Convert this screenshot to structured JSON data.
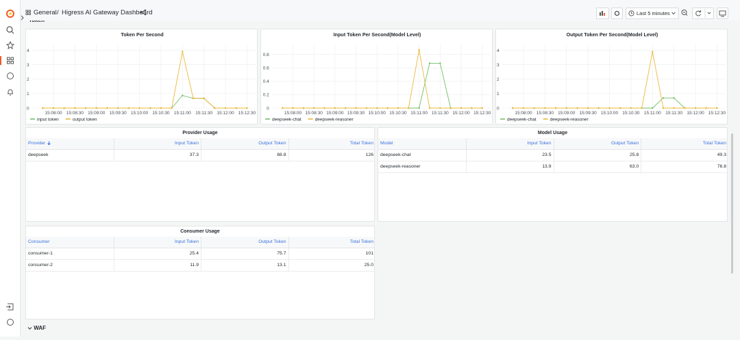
{
  "header": {
    "breadcrumb_root": "General",
    "breadcrumb_separator": "/",
    "dashboard_title": "Higress AI Gateway Dashboard",
    "time_range": "Last 5 minutes"
  },
  "rows": [
    "Token",
    "WAF"
  ],
  "chart_data": [
    {
      "type": "line",
      "title": "Token Per Second",
      "x": [
        "15:07:45",
        "15:08:00",
        "15:08:15",
        "15:08:30",
        "15:08:45",
        "15:09:00",
        "15:09:15",
        "15:09:30",
        "15:09:45",
        "15:10:00",
        "15:10:15",
        "15:10:30",
        "15:10:45",
        "15:11:00",
        "15:11:15",
        "15:11:30",
        "15:11:45",
        "15:12:00",
        "15:12:15",
        "15:12:30"
      ],
      "xlim": [
        "15:07:30",
        "15:12:42"
      ],
      "xticks": [
        "15:08:00",
        "15:08:30",
        "15:09:00",
        "15:09:30",
        "15:10:00",
        "15:10:30",
        "15:11:00",
        "15:11:30",
        "15:12:00",
        "15:12:30"
      ],
      "ylim": [
        0,
        4.4
      ],
      "yticks": [
        0,
        1,
        2,
        3,
        4
      ],
      "grid": true,
      "legend": "bottom",
      "series": [
        {
          "name": "input token",
          "color": "#73bf69",
          "values": [
            0,
            0,
            0,
            0,
            0,
            0,
            0,
            0,
            0,
            0,
            0,
            0,
            0,
            0.87,
            0.67,
            0.67,
            0,
            0,
            0,
            0
          ]
        },
        {
          "name": "output token",
          "color": "#eab839",
          "values": [
            0,
            0,
            0,
            0,
            0,
            0,
            0,
            0,
            0,
            0,
            0,
            0,
            0,
            3.9,
            0.68,
            0.68,
            0,
            0,
            0,
            0
          ]
        }
      ]
    },
    {
      "type": "line",
      "title": "Input Token Per Second(Model Level)",
      "x": [
        "15:07:45",
        "15:08:00",
        "15:08:15",
        "15:08:30",
        "15:08:45",
        "15:09:00",
        "15:09:15",
        "15:09:30",
        "15:09:45",
        "15:10:00",
        "15:10:15",
        "15:10:30",
        "15:10:45",
        "15:11:00",
        "15:11:15",
        "15:11:30",
        "15:11:45",
        "15:12:00",
        "15:12:15",
        "15:12:30"
      ],
      "xlim": [
        "15:07:30",
        "15:12:42"
      ],
      "xticks": [
        "15:08:00",
        "15:08:30",
        "15:09:00",
        "15:09:30",
        "15:10:00",
        "15:10:30",
        "15:11:00",
        "15:11:30",
        "15:12:00",
        "15:12:30"
      ],
      "ylim": [
        0,
        0.95
      ],
      "yticks": [
        0,
        0.2,
        0.4,
        0.6,
        0.8
      ],
      "grid": true,
      "legend": "bottom",
      "series": [
        {
          "name": "deepseek-chat",
          "color": "#73bf69",
          "values": [
            0,
            0,
            0,
            0,
            0,
            0,
            0,
            0,
            0,
            0,
            0,
            0,
            0,
            0,
            0.67,
            0.67,
            0,
            0,
            0,
            0
          ]
        },
        {
          "name": "deepseek-reasoner",
          "color": "#eab839",
          "values": [
            0,
            0,
            0,
            0,
            0,
            0,
            0,
            0,
            0,
            0,
            0,
            0,
            0,
            0.87,
            0,
            0,
            0,
            0,
            0,
            0
          ]
        }
      ]
    },
    {
      "type": "line",
      "title": "Output Token Per Second(Model Level)",
      "x": [
        "15:07:45",
        "15:08:00",
        "15:08:15",
        "15:08:30",
        "15:08:45",
        "15:09:00",
        "15:09:15",
        "15:09:30",
        "15:09:45",
        "15:10:00",
        "15:10:15",
        "15:10:30",
        "15:10:45",
        "15:11:00",
        "15:11:15",
        "15:11:30",
        "15:11:45",
        "15:12:00",
        "15:12:15",
        "15:12:30"
      ],
      "xlim": [
        "15:07:30",
        "15:12:42"
      ],
      "xticks": [
        "15:08:00",
        "15:08:30",
        "15:09:00",
        "15:09:30",
        "15:10:00",
        "15:10:30",
        "15:11:00",
        "15:11:30",
        "15:12:00",
        "15:12:30"
      ],
      "ylim": [
        0,
        4.4
      ],
      "yticks": [
        0,
        1,
        2,
        3,
        4
      ],
      "grid": true,
      "legend": "bottom",
      "series": [
        {
          "name": "deepseek-chat",
          "color": "#73bf69",
          "values": [
            0,
            0,
            0,
            0,
            0,
            0,
            0,
            0,
            0,
            0,
            0,
            0,
            0,
            0,
            0.7,
            0.7,
            0,
            0,
            0,
            0
          ]
        },
        {
          "name": "deepseek-reasoner",
          "color": "#eab839",
          "values": [
            0,
            0,
            0,
            0,
            0,
            0,
            0,
            0,
            0,
            0,
            0,
            0,
            0,
            3.9,
            0,
            0,
            0,
            0,
            0,
            0
          ]
        }
      ]
    }
  ],
  "tables": [
    {
      "title": "Provider Usage",
      "columns": [
        "Provider",
        "Input Token",
        "Output Token",
        "Total Token"
      ],
      "rows": [
        [
          "deepseek",
          "37.3",
          "88.8",
          "126"
        ]
      ]
    },
    {
      "title": "Model Usage",
      "columns": [
        "Model",
        "Input Token",
        "Output Token",
        "Total Token"
      ],
      "rows": [
        [
          "deepseek-chat",
          "23.5",
          "25.8",
          "49.3"
        ],
        [
          "deepseek-reasoner",
          "13.9",
          "63.0",
          "76.8"
        ]
      ]
    },
    {
      "title": "Consumer Usage",
      "columns": [
        "Consumer",
        "Input Token",
        "Output Token",
        "Total Token"
      ],
      "rows": [
        [
          "consumer-1",
          "25.4",
          "75.7",
          "101"
        ],
        [
          "consumer-2",
          "11.9",
          "13.1",
          "25.0"
        ]
      ]
    }
  ]
}
